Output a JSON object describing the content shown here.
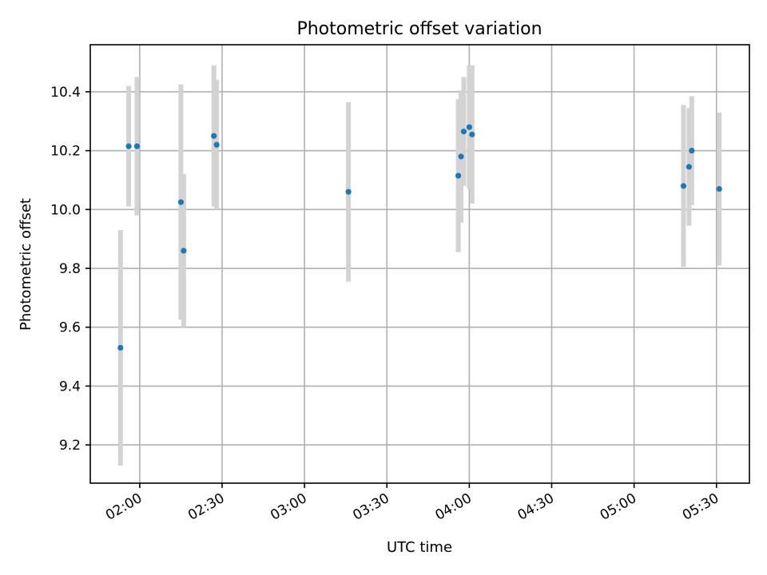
{
  "chart_data": {
    "type": "scatter",
    "title": "Photometric offset variation",
    "xlabel": "UTC time",
    "ylabel": "Photometric offset",
    "x_axis_kind": "time",
    "xlim": [
      "01:42",
      "05:42"
    ],
    "ylim": [
      9.07,
      10.56
    ],
    "xticks": [
      "02:00",
      "02:30",
      "03:00",
      "03:30",
      "04:00",
      "04:30",
      "05:00",
      "05:30"
    ],
    "xtick_rotation_deg": 30,
    "yticks": [
      9.2,
      9.4,
      9.6,
      9.8,
      10.0,
      10.2,
      10.4
    ],
    "ytick_labels": [
      "9.2",
      "9.4",
      "9.6",
      "9.8",
      "10.0",
      "10.2",
      "10.4"
    ],
    "grid": true,
    "legend": "none",
    "colors": {
      "point": "#1f77b4",
      "errorbar": "#d3d3d3",
      "grid": "#b0b0b0"
    },
    "series": [
      {
        "points": [
          {
            "time": "01:53",
            "y": 9.53,
            "err": 0.4
          },
          {
            "time": "01:56",
            "y": 10.215,
            "err": 0.205
          },
          {
            "time": "01:59",
            "y": 10.215,
            "err": 0.235
          },
          {
            "time": "02:15",
            "y": 10.025,
            "err": 0.4
          },
          {
            "time": "02:16",
            "y": 9.86,
            "err": 0.26
          },
          {
            "time": "02:27",
            "y": 10.25,
            "err": 0.24
          },
          {
            "time": "02:28",
            "y": 10.22,
            "err": 0.22
          },
          {
            "time": "03:16",
            "y": 10.06,
            "err": 0.305
          },
          {
            "time": "03:56",
            "y": 10.115,
            "err": 0.26
          },
          {
            "time": "03:57",
            "y": 10.18,
            "err": 0.225
          },
          {
            "time": "03:58",
            "y": 10.265,
            "err": 0.185
          },
          {
            "time": "04:00",
            "y": 10.28,
            "err": 0.21
          },
          {
            "time": "04:01",
            "y": 10.255,
            "err": 0.235
          },
          {
            "time": "05:18",
            "y": 10.08,
            "err": 0.275
          },
          {
            "time": "05:20",
            "y": 10.145,
            "err": 0.2
          },
          {
            "time": "05:21",
            "y": 10.2,
            "err": 0.185
          },
          {
            "time": "05:31",
            "y": 10.07,
            "err": 0.26
          }
        ]
      }
    ]
  }
}
